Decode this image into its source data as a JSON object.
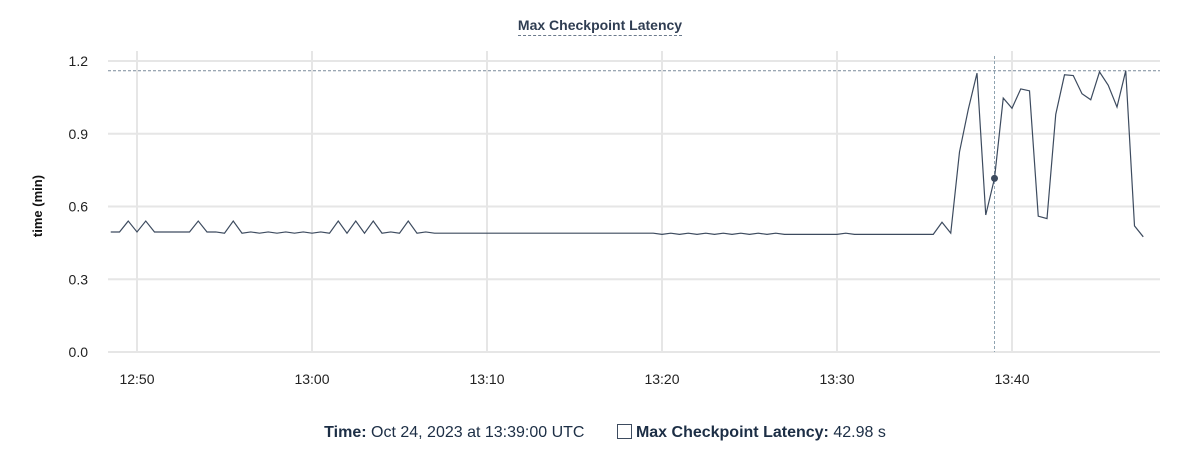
{
  "chart_data": {
    "type": "line",
    "title": "Max Checkpoint Latency",
    "ylabel": "time (min)",
    "xlabel": "",
    "ylim": [
      0,
      1.2
    ],
    "yticks": [
      "0.0",
      "0.3",
      "0.6",
      "0.9",
      "1.2"
    ],
    "xticks": [
      "12:50",
      "13:00",
      "13:10",
      "13:20",
      "13:30",
      "13:40"
    ],
    "grid": true,
    "line_color": "#3d4b5f",
    "max_value": 1.16,
    "cursor_time": "13:39:00",
    "points": [
      [
        "12:48:30",
        0.495
      ],
      [
        "12:49:00",
        0.495
      ],
      [
        "12:49:30",
        0.54
      ],
      [
        "12:50:00",
        0.495
      ],
      [
        "12:50:30",
        0.54
      ],
      [
        "12:51:00",
        0.495
      ],
      [
        "12:51:30",
        0.495
      ],
      [
        "12:52:00",
        0.495
      ],
      [
        "12:52:30",
        0.495
      ],
      [
        "12:53:00",
        0.495
      ],
      [
        "12:53:30",
        0.54
      ],
      [
        "12:54:00",
        0.495
      ],
      [
        "12:54:30",
        0.495
      ],
      [
        "12:55:00",
        0.49
      ],
      [
        "12:55:30",
        0.54
      ],
      [
        "12:56:00",
        0.49
      ],
      [
        "12:56:30",
        0.495
      ],
      [
        "12:57:00",
        0.49
      ],
      [
        "12:57:30",
        0.495
      ],
      [
        "12:58:00",
        0.49
      ],
      [
        "12:58:30",
        0.495
      ],
      [
        "12:59:00",
        0.49
      ],
      [
        "12:59:30",
        0.495
      ],
      [
        "13:00:00",
        0.49
      ],
      [
        "13:00:30",
        0.495
      ],
      [
        "13:01:00",
        0.49
      ],
      [
        "13:01:30",
        0.54
      ],
      [
        "13:02:00",
        0.49
      ],
      [
        "13:02:30",
        0.54
      ],
      [
        "13:03:00",
        0.49
      ],
      [
        "13:03:30",
        0.54
      ],
      [
        "13:04:00",
        0.49
      ],
      [
        "13:04:30",
        0.495
      ],
      [
        "13:05:00",
        0.49
      ],
      [
        "13:05:30",
        0.54
      ],
      [
        "13:06:00",
        0.49
      ],
      [
        "13:06:30",
        0.495
      ],
      [
        "13:07:00",
        0.49
      ],
      [
        "13:07:30",
        0.49
      ],
      [
        "13:08:00",
        0.49
      ],
      [
        "13:08:30",
        0.49
      ],
      [
        "13:09:00",
        0.49
      ],
      [
        "13:09:30",
        0.49
      ],
      [
        "13:10:00",
        0.49
      ],
      [
        "13:10:30",
        0.49
      ],
      [
        "13:11:00",
        0.49
      ],
      [
        "13:11:30",
        0.49
      ],
      [
        "13:12:00",
        0.49
      ],
      [
        "13:12:30",
        0.49
      ],
      [
        "13:13:00",
        0.49
      ],
      [
        "13:13:30",
        0.49
      ],
      [
        "13:14:00",
        0.49
      ],
      [
        "13:14:30",
        0.49
      ],
      [
        "13:15:00",
        0.49
      ],
      [
        "13:15:30",
        0.49
      ],
      [
        "13:16:00",
        0.49
      ],
      [
        "13:16:30",
        0.49
      ],
      [
        "13:17:00",
        0.49
      ],
      [
        "13:17:30",
        0.49
      ],
      [
        "13:18:00",
        0.49
      ],
      [
        "13:18:30",
        0.49
      ],
      [
        "13:19:00",
        0.49
      ],
      [
        "13:19:30",
        0.49
      ],
      [
        "13:20:00",
        0.485
      ],
      [
        "13:20:30",
        0.49
      ],
      [
        "13:21:00",
        0.485
      ],
      [
        "13:21:30",
        0.49
      ],
      [
        "13:22:00",
        0.485
      ],
      [
        "13:22:30",
        0.49
      ],
      [
        "13:23:00",
        0.485
      ],
      [
        "13:23:30",
        0.49
      ],
      [
        "13:24:00",
        0.485
      ],
      [
        "13:24:30",
        0.49
      ],
      [
        "13:25:00",
        0.485
      ],
      [
        "13:25:30",
        0.49
      ],
      [
        "13:26:00",
        0.485
      ],
      [
        "13:26:30",
        0.49
      ],
      [
        "13:27:00",
        0.485
      ],
      [
        "13:27:30",
        0.485
      ],
      [
        "13:28:00",
        0.485
      ],
      [
        "13:28:30",
        0.485
      ],
      [
        "13:29:00",
        0.485
      ],
      [
        "13:29:30",
        0.485
      ],
      [
        "13:30:00",
        0.485
      ],
      [
        "13:30:30",
        0.49
      ],
      [
        "13:31:00",
        0.485
      ],
      [
        "13:31:30",
        0.485
      ],
      [
        "13:32:00",
        0.485
      ],
      [
        "13:32:30",
        0.485
      ],
      [
        "13:33:00",
        0.485
      ],
      [
        "13:33:30",
        0.485
      ],
      [
        "13:34:00",
        0.485
      ],
      [
        "13:34:30",
        0.485
      ],
      [
        "13:35:00",
        0.485
      ],
      [
        "13:35:30",
        0.485
      ],
      [
        "13:36:00",
        0.535
      ],
      [
        "13:36:30",
        0.49
      ],
      [
        "13:37:00",
        0.825
      ],
      [
        "13:37:30",
        1.0
      ],
      [
        "13:38:00",
        1.15
      ],
      [
        "13:38:30",
        0.565
      ],
      [
        "13:39:00",
        0.716
      ],
      [
        "13:39:30",
        1.047
      ],
      [
        "13:40:00",
        1.005
      ],
      [
        "13:40:30",
        1.085
      ],
      [
        "13:41:00",
        1.077
      ],
      [
        "13:41:30",
        0.56
      ],
      [
        "13:42:00",
        0.55
      ],
      [
        "13:42:30",
        0.98
      ],
      [
        "13:43:00",
        1.143
      ],
      [
        "13:43:30",
        1.14
      ],
      [
        "13:44:00",
        1.065
      ],
      [
        "13:44:30",
        1.04
      ],
      [
        "13:45:00",
        1.155
      ],
      [
        "13:45:30",
        1.1
      ],
      [
        "13:46:00",
        1.01
      ],
      [
        "13:46:30",
        1.16
      ],
      [
        "13:47:00",
        0.52
      ],
      [
        "13:47:30",
        0.475
      ]
    ]
  },
  "legend": {
    "time_label": "Time:",
    "time_value": "Oct 24, 2023 at 13:39:00 UTC",
    "series_label": "Max Checkpoint Latency:",
    "series_value": "42.98 s"
  }
}
